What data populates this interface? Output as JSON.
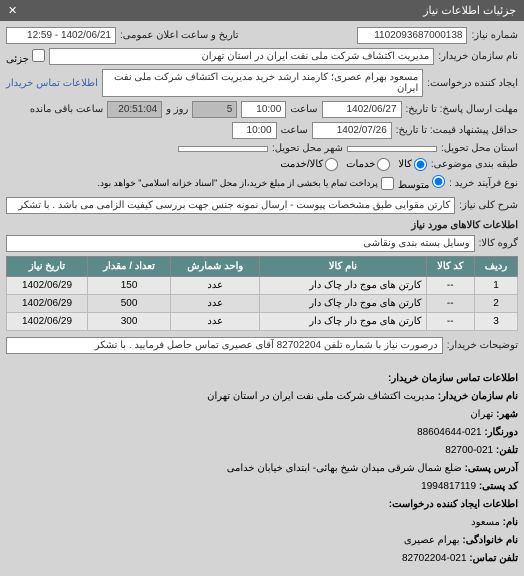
{
  "titlebar": {
    "title": "جزئیات اطلاعات نیاز",
    "close": "✕"
  },
  "fields": {
    "request_number_label": "شماره نیاز:",
    "request_number": "1102093687000138",
    "public_date_label": "تاریخ و ساعت اعلان عمومی:",
    "public_date": "1402/06/21 - 12:59",
    "buyer_section_label": "نام سازمان خریدار:",
    "buyer_section": "مدیریت اکتشاف شرکت ملی نفت ایران در استان تهران",
    "partial_label": "جزئی",
    "requester_label": "ایجاد کننده درخواست:",
    "requester": "مسعود بهرام عصری؛ کارمند ارشد خرید مدیریت اکتشاف شرکت ملی نفت ایران",
    "contact_link": "اطلاعات تماس خریدار",
    "deadline_send_label": "مهلت ارسال پاسخ: تا تاریخ:",
    "deadline_send_date": "1402/06/27",
    "time_label": "ساعت",
    "deadline_send_time": "10:00",
    "days_label": "روز و",
    "days": "5",
    "remaining_label": "ساعت باقی مانده",
    "remaining": "20:51:04",
    "deadline_price_label": "حداقل پیشنهاد قیمت: تا تاریخ:",
    "deadline_price_date": "1402/07/26",
    "deadline_price_time": "10:00",
    "delivery_state_label": "استان محل تحویل:",
    "delivery_city_label": "شهر محل تحویل:",
    "budget_type_label": "طبقه بندی موضوعی:",
    "budget_kala": "کالا",
    "budget_khadamat": "خدمات",
    "budget_both": "کالا/خدمت",
    "process_type_label": "نوع فرآیند خرید :",
    "process_medium": "متوسط",
    "process_note": "پرداخت تمام یا بخشی از مبلغ خرید،از محل \"اسناد خزانه اسلامی\" خواهد بود.",
    "desc_label": "شرح کلی نیاز:",
    "desc": "کارتن مقوایی طبق مشخصات پیوست - ارسال نمونه جنس جهت بررسی کیفیت الزامی می باشد . با تشکر",
    "goods_info_title": "اطلاعات کالاهای مورد نیاز",
    "group_label": "گروه کالا:",
    "group_value": "وسایل بسته بندی  ونقاشی",
    "buyer_note_label": "توضیحات خریدار:",
    "buyer_note": "درصورت نیاز با شماره تلفن 82702204 آقای عصیری تماس حاصل فرمایید . با تشکر"
  },
  "table": {
    "headers": {
      "row": "ردیف",
      "code": "کد کالا",
      "name": "نام کالا",
      "unit": "واحد شمارش",
      "qty": "تعداد / مقدار",
      "date": "تاریخ نیاز"
    },
    "rows": [
      {
        "row": "1",
        "code": "--",
        "name": "کارتن های موج دار چاک دار",
        "unit": "عدد",
        "qty": "150",
        "date": "1402/06/29"
      },
      {
        "row": "2",
        "code": "--",
        "name": "کارتن های موج دار چاک دار",
        "unit": "عدد",
        "qty": "500",
        "date": "1402/06/29"
      },
      {
        "row": "3",
        "code": "--",
        "name": "کارتن های موج دار چاک دار",
        "unit": "عدد",
        "qty": "300",
        "date": "1402/06/29"
      }
    ]
  },
  "footer": {
    "contact_title": "اطلاعات تماس سازمان خریدار:",
    "org_label": "نام سازمان خریدار:",
    "org": "مدیریت اکتشاف شرکت ملی نفت ایران در استان تهران",
    "city_label": "شهر:",
    "city": "تهران",
    "fax_label": "دورنگار:",
    "fax": "021-88604644",
    "phone_label": "تلفن:",
    "phone": "021-82700",
    "address_label": "آدرس پستی:",
    "address": "ضلع شمال شرقی میدان شیخ بهائی- ابتدای خیابان خدامی",
    "postal_label": "کد پستی:",
    "postal": "1994817119",
    "creator_title": "اطلاعات ایجاد کننده درخواست:",
    "name_label": "نام:",
    "name": "مسعود",
    "family_label": "نام خانوادگی:",
    "family": "بهرام عصیری",
    "contact_phone_label": "تلفن تماس:",
    "contact_phone": "021-82702204"
  }
}
